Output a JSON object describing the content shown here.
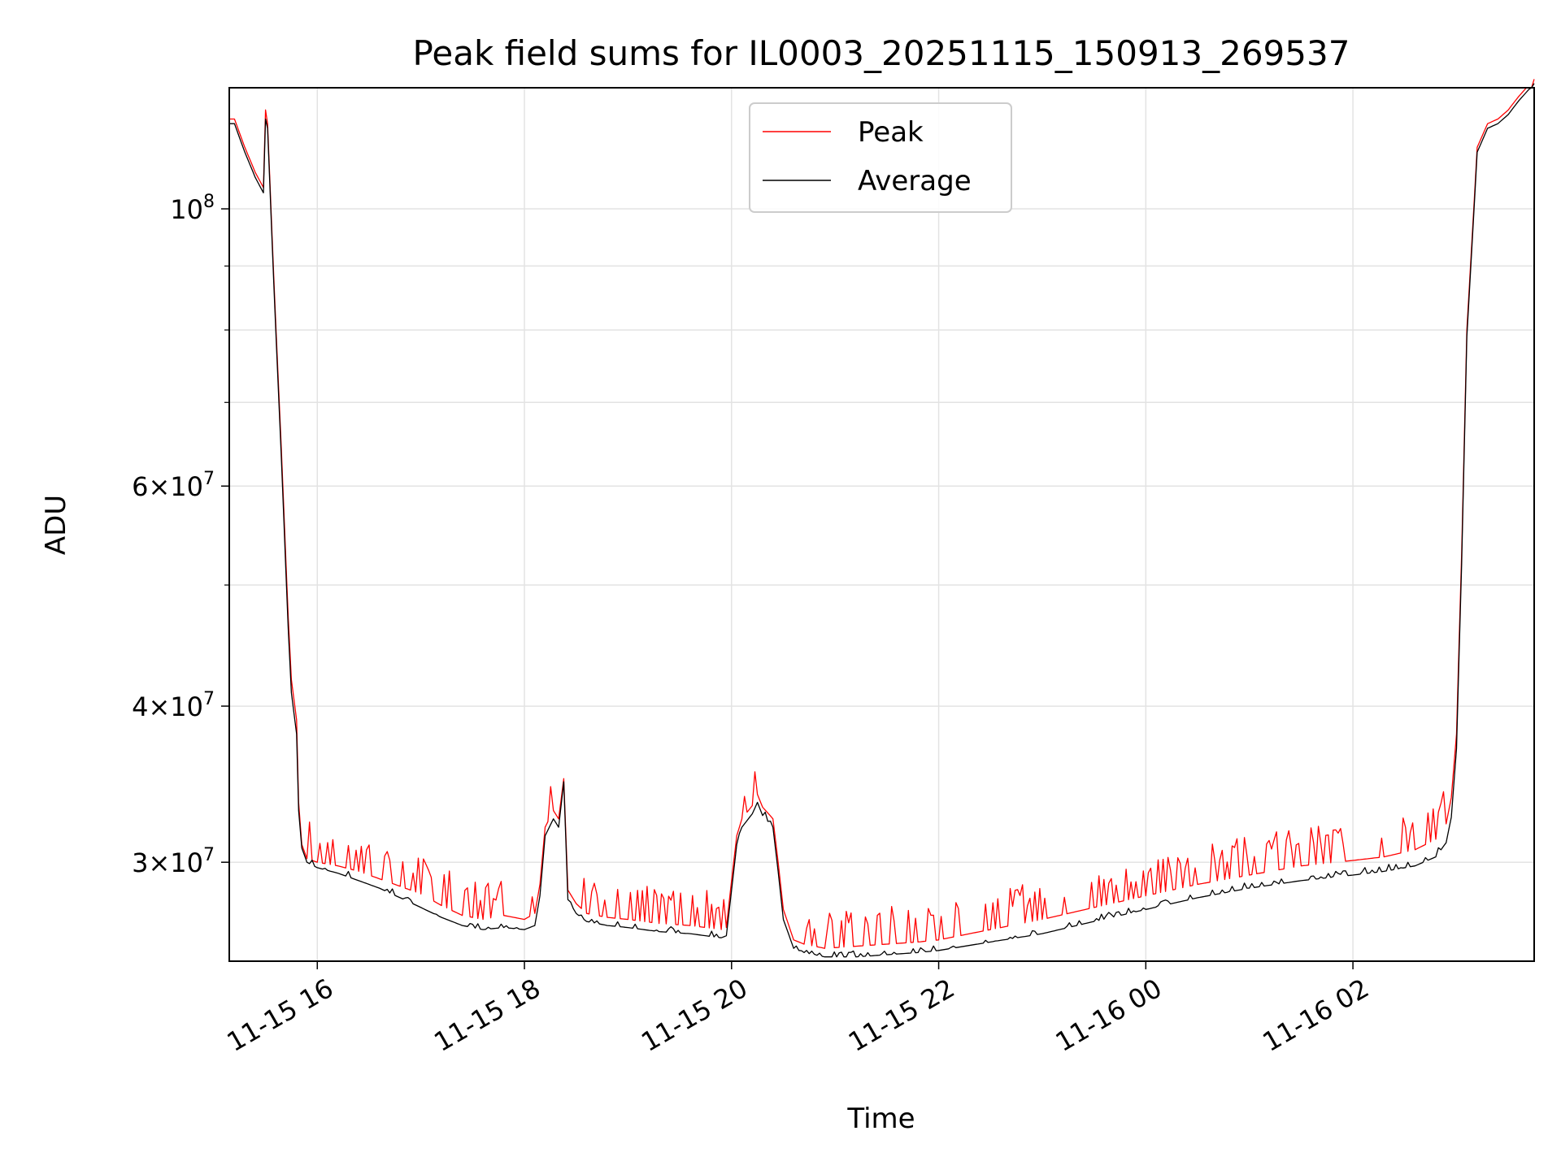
{
  "chart_data": {
    "type": "line",
    "title": "Peak field sums for IL0003_20251115_150913_269537",
    "xlabel": "Time",
    "ylabel": "ADU",
    "xlim": [
      15.15,
      27.75
    ],
    "ylim": [
      25000000,
      125000000
    ],
    "yscale": "log",
    "grid": true,
    "legend_position": "top-center",
    "x_ticks": [
      {
        "value": 16,
        "label": "11-15 16"
      },
      {
        "value": 18,
        "label": "11-15 18"
      },
      {
        "value": 20,
        "label": "11-15 20"
      },
      {
        "value": 22,
        "label": "11-15 22"
      },
      {
        "value": 24,
        "label": "11-16 00"
      },
      {
        "value": 26,
        "label": "11-16 02"
      }
    ],
    "y_ticks": [
      {
        "value": 100000000,
        "base": "10",
        "exp": "8"
      },
      {
        "value": 60000000,
        "mant": "6",
        "base": "10",
        "exp": "7"
      },
      {
        "value": 40000000,
        "mant": "4",
        "base": "10",
        "exp": "7"
      },
      {
        "value": 30000000,
        "mant": "3",
        "base": "10",
        "exp": "7"
      }
    ],
    "y_minor_ticks": [
      90000000,
      80000000,
      70000000,
      50000000
    ],
    "series": [
      {
        "name": "Peak",
        "color": "#ff0000",
        "x": [
          15.15,
          15.2,
          15.3,
          15.4,
          15.48,
          15.5,
          15.52,
          15.58,
          15.65,
          15.72,
          15.75,
          15.8,
          15.82,
          15.85,
          15.9,
          16.0,
          16.2,
          16.4,
          16.6,
          16.8,
          17.0,
          17.2,
          17.4,
          17.6,
          17.8,
          18.0,
          18.1,
          18.15,
          18.2,
          18.28,
          18.33,
          18.38,
          18.42,
          18.5,
          18.6,
          18.8,
          19.0,
          19.3,
          19.6,
          19.9,
          19.95,
          20.0,
          20.05,
          20.1,
          20.2,
          20.25,
          20.3,
          20.4,
          20.45,
          20.5,
          20.6,
          20.7,
          20.9,
          21.2,
          21.5,
          21.8,
          22.0,
          22.5,
          23.0,
          23.5,
          24.0,
          24.5,
          25.0,
          25.5,
          26.0,
          26.3,
          26.6,
          26.8,
          26.9,
          26.95,
          27.0,
          27.05,
          27.1,
          27.2,
          27.3,
          27.4,
          27.5,
          27.6,
          27.75
        ],
        "y": [
          118000000,
          118000000,
          112000000,
          107000000,
          104000000,
          120000000,
          117000000,
          88000000,
          65000000,
          47000000,
          42000000,
          39000000,
          33500000,
          31000000,
          30200000,
          30000000,
          29800000,
          29500000,
          29100000,
          28700000,
          28300000,
          27700000,
          27200000,
          27000000,
          27200000,
          27000000,
          27300000,
          28800000,
          32000000,
          33000000,
          32500000,
          35000000,
          28500000,
          27800000,
          27300000,
          27100000,
          27000000,
          26800000,
          26700000,
          26500000,
          26600000,
          29000000,
          31500000,
          32500000,
          33300000,
          34000000,
          33200000,
          32500000,
          30000000,
          27500000,
          26000000,
          25800000,
          25600000,
          25700000,
          25800000,
          25900000,
          26000000,
          26500000,
          27000000,
          27600000,
          28200000,
          28800000,
          29300000,
          29800000,
          30100000,
          30300000,
          30700000,
          31300000,
          32200000,
          33800000,
          38000000,
          53000000,
          80000000,
          112000000,
          117000000,
          118000000,
          120000000,
          123000000,
          127000000
        ]
      },
      {
        "name": "Average",
        "color": "#000000",
        "x": [
          15.15,
          15.2,
          15.3,
          15.4,
          15.48,
          15.5,
          15.52,
          15.58,
          15.65,
          15.72,
          15.75,
          15.8,
          15.82,
          15.85,
          15.9,
          16.0,
          16.2,
          16.4,
          16.6,
          16.8,
          17.0,
          17.2,
          17.4,
          17.6,
          17.8,
          18.0,
          18.1,
          18.15,
          18.2,
          18.28,
          18.33,
          18.38,
          18.42,
          18.5,
          18.6,
          18.8,
          19.0,
          19.3,
          19.6,
          19.9,
          19.95,
          20.0,
          20.05,
          20.1,
          20.2,
          20.25,
          20.3,
          20.4,
          20.45,
          20.5,
          20.6,
          20.7,
          20.9,
          21.2,
          21.5,
          21.8,
          22.0,
          22.5,
          23.0,
          23.5,
          24.0,
          24.5,
          25.0,
          25.5,
          26.0,
          26.3,
          26.6,
          26.8,
          26.9,
          26.95,
          27.0,
          27.05,
          27.1,
          27.2,
          27.3,
          27.4,
          27.5,
          27.6,
          27.75
        ],
        "y": [
          117000000,
          117000000,
          111000000,
          106000000,
          103000000,
          118000000,
          116000000,
          87000000,
          64000000,
          46000000,
          41000000,
          38000000,
          33000000,
          30800000,
          30000000,
          29700000,
          29400000,
          29000000,
          28600000,
          28100000,
          27600000,
          27100000,
          26700000,
          26500000,
          26600000,
          26500000,
          26700000,
          28200000,
          31500000,
          32500000,
          32000000,
          34800000,
          28000000,
          27300000,
          26900000,
          26700000,
          26600000,
          26400000,
          26300000,
          26100000,
          26200000,
          28500000,
          31000000,
          32000000,
          32800000,
          33500000,
          32700000,
          32000000,
          29500000,
          27000000,
          25600000,
          25400000,
          25200000,
          25200000,
          25300000,
          25400000,
          25500000,
          25900000,
          26300000,
          26900000,
          27500000,
          28100000,
          28600000,
          29000000,
          29300000,
          29500000,
          29800000,
          30300000,
          31100000,
          32600000,
          37000000,
          52000000,
          79000000,
          111000000,
          116000000,
          117000000,
          119000000,
          122000000,
          126000000
        ]
      }
    ]
  }
}
